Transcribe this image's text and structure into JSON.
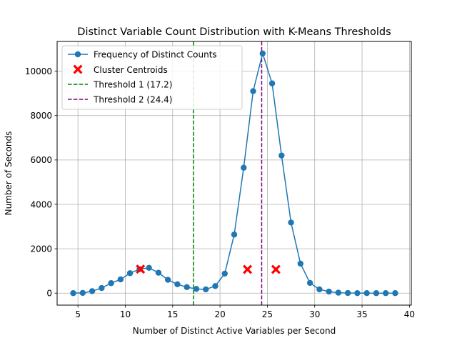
{
  "chart_data": {
    "type": "line",
    "title": "Distinct Variable Count Distribution with K-Means Thresholds",
    "xlabel": "Number of Distinct Active Variables per Second",
    "ylabel": "Number of Seconds",
    "xlim": [
      2.8,
      40.2
    ],
    "ylim": [
      -540,
      11340
    ],
    "xticks": [
      5,
      10,
      15,
      20,
      25,
      30,
      35,
      40
    ],
    "yticks": [
      0,
      2000,
      4000,
      6000,
      8000,
      10000
    ],
    "grid": true,
    "legend_position": "top-left",
    "series": [
      {
        "name": "Frequency of Distinct Counts",
        "color": "#1f77b4",
        "x": [
          4.5,
          5.5,
          6.5,
          7.5,
          8.5,
          9.5,
          10.5,
          11.5,
          12.5,
          13.5,
          14.5,
          15.5,
          16.5,
          17.5,
          18.5,
          19.5,
          20.5,
          21.5,
          22.5,
          23.5,
          24.5,
          25.5,
          26.5,
          27.5,
          28.5,
          29.5,
          30.5,
          31.5,
          32.5,
          33.5,
          34.5,
          35.5,
          36.5,
          37.5,
          38.5
        ],
        "y": [
          0,
          10,
          90,
          230,
          450,
          620,
          900,
          1080,
          1140,
          920,
          600,
          400,
          270,
          190,
          170,
          320,
          880,
          2640,
          5650,
          9100,
          10800,
          9450,
          6200,
          3180,
          1330,
          460,
          170,
          70,
          20,
          5,
          2,
          1,
          0,
          0,
          0
        ]
      }
    ],
    "centroids": {
      "name": "Cluster Centroids",
      "color": "#ff0000",
      "points": [
        [
          11.6,
          1080
        ],
        [
          22.9,
          1070
        ],
        [
          25.9,
          1070
        ]
      ]
    },
    "thresholds": [
      {
        "name": "Threshold 1 (17.2)",
        "value": 17.2,
        "color": "#008000"
      },
      {
        "name": "Threshold 2 (24.4)",
        "value": 24.4,
        "color": "#800080"
      }
    ]
  }
}
